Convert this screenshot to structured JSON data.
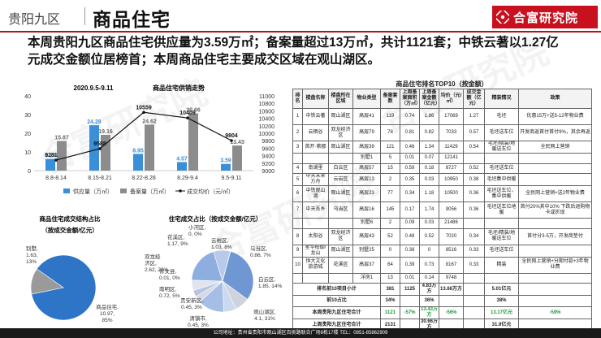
{
  "header": {
    "region": "贵阳九区",
    "title": "商品住宅",
    "logo_text": "合富研究院"
  },
  "summary": [
    "本周贵阳九区商品住宅供应量为3.59万㎡；备案量超过13万㎡，共计1121套；中铁云著以1.27亿",
    "元成交金额位居榜首；本周商品住宅主要成交区域在观山湖区。"
  ],
  "chart_data": [
    {
      "type": "bar",
      "title": "商品住宅供销走势",
      "subtitle": "2020.9.5-9.11",
      "categories": [
        "8.8-8.14",
        "8.15-8.21",
        "8.22-8.28",
        "8.29-9.4",
        "9.5-9.11"
      ],
      "series": [
        {
          "name": "供应量（万㎡）",
          "type": "bar",
          "axis": "left",
          "color": "#3a8fd8",
          "values": [
            6.26,
            24.28,
            8.95,
            4.57,
            3.59
          ]
        },
        {
          "name": "备案量（万㎡）",
          "type": "bar",
          "axis": "left",
          "color": "#8c8c8c",
          "values": [
            15.87,
            19.16,
            24.62,
            30.66,
            13.43
          ]
        },
        {
          "name": "成交均价（元/㎡）",
          "type": "line",
          "axis": "right",
          "color": "#111111",
          "values": [
            9281,
            9588,
            10559,
            10409,
            9804
          ]
        }
      ],
      "y_left": {
        "ticks": [
          0,
          10,
          20,
          30,
          40
        ],
        "ylim": [
          0,
          40
        ]
      },
      "y_right": {
        "ticks": [
          9000,
          9200,
          9400,
          9600,
          9800,
          10000,
          10200,
          10400,
          10600,
          10800,
          11000
        ],
        "ylim": [
          9000,
          11000
        ]
      },
      "legend_position": "bottom",
      "grid": false
    },
    {
      "type": "pie",
      "title": "商品住宅成交结构占比",
      "subtitle": "（按成交金额/亿元）",
      "slices": [
        {
          "label": "商品住宅",
          "value": 10.97,
          "percent": "85%",
          "color": "#2e75c8"
        },
        {
          "label": "别墅",
          "value": 1.63,
          "percent": "13%",
          "color": "#9a9a9a"
        }
      ]
    },
    {
      "type": "pie",
      "title": "住宅成交占比（按成交金额/亿元）",
      "slices": [
        {
          "label": "观山湖区",
          "value": 4.1,
          "percent": "31%",
          "color": "#6f97d3"
        },
        {
          "label": "云岩区",
          "value": 1.03,
          "percent": "8%",
          "color": "#cfd3df"
        },
        {
          "label": "乌当区",
          "value": 0.86,
          "percent": "7%",
          "color": "#c8d9f0"
        },
        {
          "label": "白云区",
          "value": 1.85,
          "percent": "14%",
          "color": "#a6bde6"
        },
        {
          "label": "清镇市",
          "value": 0.45,
          "percent": "3%",
          "color": "#d6d9e2"
        },
        {
          "label": "贵安新区",
          "value": 0.45,
          "percent": "3%",
          "color": "#b6c5e6"
        },
        {
          "label": "南明区",
          "value": 0.72,
          "percent": "5%",
          "color": "#e1e4ec"
        },
        {
          "label": "双龙经济区",
          "value": 2.62,
          "percent": "20%",
          "color": "#8faee0"
        },
        {
          "label": "花溪区",
          "value": 1.17,
          "percent": "9%",
          "color": "#b9c9e9"
        },
        {
          "label": "修文县",
          "value": 0.01,
          "percent": "0%",
          "color": "#dfe3ec"
        },
        {
          "label": "小河区",
          "value": 0.0,
          "percent": "0%",
          "color": "#e8eaf0"
        }
      ],
      "raw_labels": [
        "观山湖区, 4.1, 31%",
        "云岩区, 1.03, 8%",
        "乌当区, 0.86, 7%",
        "白云区, 1.85, 14%",
        "清镇市, 0.45, 3%",
        "贵安新区, 0.45, 3%",
        "南明区, 0.72, 5%",
        "双龙经济区, 2.62, 20%",
        "花溪区, 1.17, 9%",
        "修文县, 0.01, 0%",
        "小河区, 0, 0%"
      ]
    }
  ],
  "table": {
    "title": "商品住宅排名TOP10（按金额）",
    "headers": [
      "排名",
      "楼盘名称",
      "楼盘所在区域",
      "物业类型",
      "备案套数",
      "上周备案面积（万㎡）",
      "上周备案金额（亿元）",
      "均价（元/㎡）",
      "成交金额（亿元）",
      "精装情况",
      "政策"
    ],
    "rows": [
      [
        "1",
        "中铁云著",
        "观山湖区",
        "高层41",
        "119",
        "0.74",
        "1.86",
        "17069",
        "1.27",
        "毛坯",
        "优惠15万+送5-12年物业费"
      ],
      [
        "2",
        "云栖谷",
        "双龙经济区",
        "高层79",
        "78",
        "0.81",
        "0.82",
        "7033",
        "0.57",
        "毛坯送车位",
        "开发商返首付首付9%，其余再返"
      ],
      [
        "3",
        "首开·紫郡",
        "观山湖区",
        "高层39",
        "121",
        "0.46",
        "1.34",
        "11429",
        "0.54",
        "毛坯/精装/地暖送车位",
        "全民网上营销"
      ],
      [
        "",
        "",
        "",
        "别墅1",
        "5",
        "0.01",
        "0.07",
        "12141",
        "",
        "",
        ""
      ],
      [
        "4",
        "南湖里",
        "白云区",
        "高层57",
        "15",
        "0.59",
        "0.18",
        "8727",
        "0.52",
        "毛坯送车位",
        ""
      ],
      [
        "5",
        "中天未来方舟",
        "云岩区",
        "高层13",
        "2",
        "0.35",
        "0.03",
        "10950",
        "0.38",
        "毛坯集中供暖",
        ""
      ],
      [
        "6",
        "中铁观山湖",
        "观山湖区",
        "高层23",
        "77",
        "0.34",
        "1.18",
        "10500",
        "0.36",
        "毛坯送车位，集中供暖",
        "全民网上营销+送2年物业费"
      ],
      [
        "7",
        "中天吾乡",
        "乌当区",
        "高层16",
        "145",
        "0.17",
        "1.74",
        "9056",
        "0.36",
        "毛坯送车位地暖",
        "首付20%其中10% 下跌后退购物卡或折现"
      ],
      [
        "",
        "",
        "",
        "别墅6",
        "2",
        "0.09",
        "0.03",
        "21486",
        "",
        "",
        ""
      ],
      [
        "8",
        "太阳谷",
        "双龙经济区",
        "高层43",
        "52",
        "0.48",
        "0.52",
        "7020",
        "0.34",
        "毛坯/精装/地暖送车位",
        "首付分3-5万，开发商垫付"
      ],
      [
        "9",
        "星华柏御/龙山",
        "观山湖区",
        "别墅25",
        "0",
        "0.38",
        "0",
        "8516",
        "0.33",
        "毛坯送车位",
        ""
      ],
      [
        "10",
        "恒大文化旅游城",
        "花溪区",
        "高层37",
        "64",
        "0.39",
        "0.73",
        "8167",
        "0.33",
        "精装",
        "全民网上营销+分期付款+3年物业费"
      ],
      [
        "",
        "",
        "",
        "洋房1",
        "13",
        "0.01",
        "0.14",
        "9748",
        "",
        "",
        ""
      ]
    ],
    "summary_rows": [
      [
        "排名前10项目小计",
        "381",
        "1125",
        "4.83万方",
        "13.66万方",
        "",
        "5.01亿元",
        "",
        ""
      ],
      [
        "前10占比",
        "34%",
        "",
        "36%",
        "",
        "",
        "38%",
        "",
        ""
      ],
      [
        "本周贵阳九区住宅合计",
        "1121",
        "-57%",
        "13.43万方",
        "-56%",
        "",
        "13.17亿元",
        "-59%",
        ""
      ],
      [
        "上周贵阳九区住宅合计",
        "2131",
        "",
        "30.66万方",
        "",
        "",
        "31.9亿元",
        "",
        ""
      ]
    ]
  },
  "footer": "公司地址：贵州省贵阳市观山湖区百挑路联合广场8栋17楼    TEL：0851-85862909",
  "watermark": "合富研究院"
}
